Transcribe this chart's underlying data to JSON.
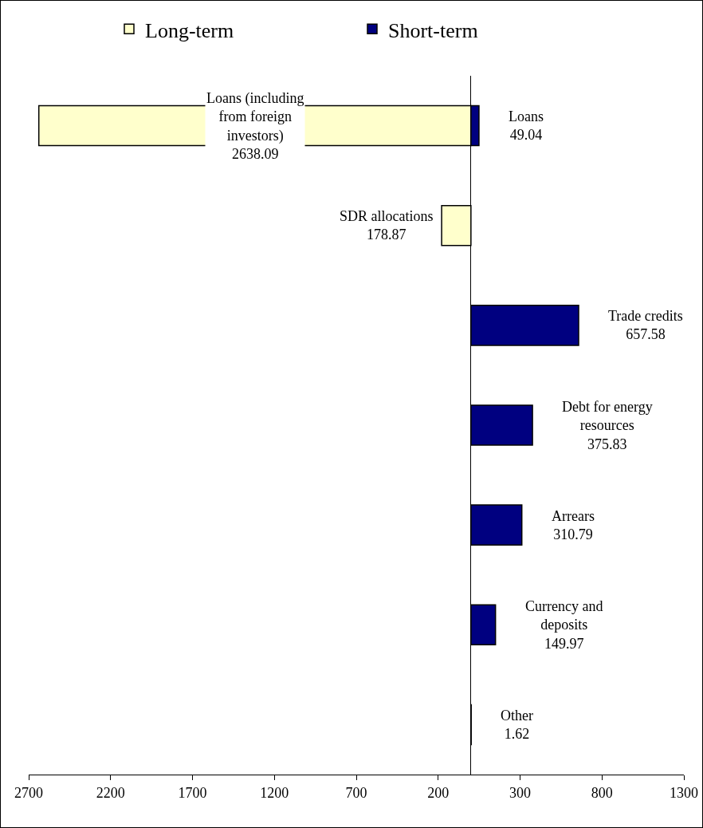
{
  "chart_data": {
    "type": "bar",
    "orientation": "horizontal",
    "categories": [
      null,
      null,
      null,
      null,
      null,
      null,
      null
    ],
    "series": [
      {
        "name": "Long-term",
        "color": "#ffffcc",
        "values": [
          2638.09,
          178.87,
          null,
          null,
          null,
          null,
          null
        ],
        "base": [
          -2638.09,
          -178.87,
          null,
          null,
          null,
          null,
          null
        ],
        "value_labels": [
          "Loans (including from foreign investors) 2638.09",
          "SDR allocations 178.87",
          null,
          null,
          null,
          null,
          null
        ]
      },
      {
        "name": "Short-term",
        "color": "#000080",
        "values": [
          49.04,
          null,
          657.58,
          375.83,
          310.79,
          149.97,
          1.62
        ],
        "value_labels": [
          "Loans 49.04",
          null,
          "Trade credits 657.58",
          "Debt for energy resources 375.83",
          "Arrears 310.79",
          "Currency and deposits 149.97",
          "Other 1.62"
        ]
      }
    ],
    "xlim": [
      -2700,
      1300
    ],
    "xticks": [
      {
        "value": -2700,
        "label": "2700"
      },
      {
        "value": -2200,
        "label": "2200"
      },
      {
        "value": -1700,
        "label": "1700"
      },
      {
        "value": -1200,
        "label": "1200"
      },
      {
        "value": -700,
        "label": "700"
      },
      {
        "value": -200,
        "label": "200"
      },
      300,
      800,
      1300
    ],
    "tick_labels": "x",
    "grid": false,
    "legend": "top"
  }
}
